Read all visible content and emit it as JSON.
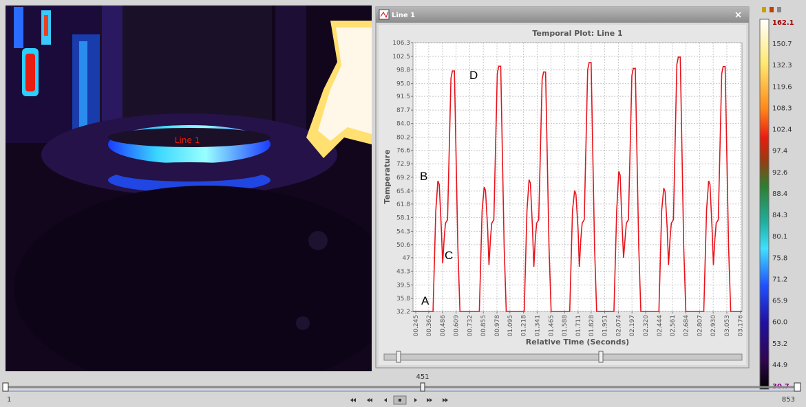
{
  "window": {
    "title": "Line 1"
  },
  "image": {
    "line_label": "Line 1"
  },
  "chart_data": {
    "type": "line",
    "title": "Temporal Plot: Line 1",
    "x_label": "Relative Time (Seconds)",
    "y_label": "Temperature",
    "color": "#e8141c",
    "grid": true,
    "xlim": [
      0.22,
      3.19
    ],
    "ylim": [
      32.2,
      106.3
    ],
    "xticks": [
      {
        "value": 0.245,
        "label": "00.245"
      },
      {
        "value": 0.362,
        "label": "00.362"
      },
      {
        "value": 0.486,
        "label": "00.486"
      },
      {
        "value": 0.609,
        "label": "00.609"
      },
      {
        "value": 0.732,
        "label": "00.732"
      },
      {
        "value": 0.855,
        "label": "00.855"
      },
      {
        "value": 0.978,
        "label": "00.978"
      },
      {
        "value": 1.095,
        "label": "01.095"
      },
      {
        "value": 1.218,
        "label": "01.218"
      },
      {
        "value": 1.341,
        "label": "01.341"
      },
      {
        "value": 1.465,
        "label": "01.465"
      },
      {
        "value": 1.588,
        "label": "01.588"
      },
      {
        "value": 1.711,
        "label": "01.711"
      },
      {
        "value": 1.828,
        "label": "01.828"
      },
      {
        "value": 1.951,
        "label": "01.951"
      },
      {
        "value": 2.074,
        "label": "02.074"
      },
      {
        "value": 2.197,
        "label": "02.197"
      },
      {
        "value": 2.32,
        "label": "02.320"
      },
      {
        "value": 2.444,
        "label": "02.444"
      },
      {
        "value": 2.561,
        "label": "02.561"
      },
      {
        "value": 2.684,
        "label": "02.684"
      },
      {
        "value": 2.807,
        "label": "02.807"
      },
      {
        "value": 2.93,
        "label": "02.930"
      },
      {
        "value": 3.053,
        "label": "03.053"
      },
      {
        "value": 3.176,
        "label": "03.176"
      }
    ],
    "yticks": [
      32.2,
      35.8,
      39.5,
      43.3,
      47.0,
      50.6,
      54.3,
      58.1,
      61.8,
      65.4,
      69.2,
      72.9,
      76.6,
      80.2,
      {
        "value": 84,
        "label": "84.0"
      },
      87.7,
      91.5,
      {
        "value": 95,
        "label": "95.0"
      },
      98.8,
      102.5,
      106.3
    ],
    "annotations": [
      "A",
      "B",
      "C",
      "D"
    ],
    "x": [
      0.22,
      0.401,
      0.426,
      0.445,
      0.457,
      0.476,
      0.488,
      0.501,
      0.513,
      0.532,
      0.563,
      0.576,
      0.594,
      0.625,
      0.644,
      0.819,
      0.844,
      0.863,
      0.875,
      0.894,
      0.906,
      0.919,
      0.931,
      0.95,
      0.981,
      0.994,
      1.012,
      1.043,
      1.062,
      1.224,
      1.249,
      1.268,
      1.28,
      1.299,
      1.311,
      1.324,
      1.336,
      1.355,
      1.386,
      1.399,
      1.417,
      1.448,
      1.467,
      1.635,
      1.66,
      1.679,
      1.691,
      1.71,
      1.722,
      1.735,
      1.747,
      1.766,
      1.797,
      1.81,
      1.828,
      1.859,
      1.878,
      2.034,
      2.059,
      2.078,
      2.09,
      2.109,
      2.121,
      2.134,
      2.146,
      2.165,
      2.196,
      2.209,
      2.227,
      2.258,
      2.277,
      2.44,
      2.465,
      2.484,
      2.496,
      2.515,
      2.527,
      2.54,
      2.552,
      2.571,
      2.602,
      2.615,
      2.633,
      2.664,
      2.683,
      2.845,
      2.87,
      2.889,
      2.901,
      2.92,
      2.932,
      2.945,
      2.957,
      2.976,
      3.007,
      3.02,
      3.038,
      3.069,
      3.088,
      3.19
    ],
    "values": [
      32.2,
      32.2,
      60.0,
      68.2,
      67.2,
      55.0,
      45.5,
      52.0,
      56.5,
      57.5,
      96.5,
      98.5,
      98.5,
      50.0,
      32.2,
      32.2,
      60.0,
      66.5,
      65.5,
      55.0,
      45.0,
      52.0,
      56.5,
      57.5,
      97.8,
      99.8,
      99.8,
      50.0,
      32.2,
      32.2,
      60.0,
      68.5,
      67.5,
      55.0,
      44.5,
      52.0,
      56.5,
      57.5,
      96.2,
      98.2,
      98.2,
      50.0,
      32.2,
      32.2,
      60.0,
      65.5,
      64.5,
      55.0,
      44.5,
      52.0,
      56.5,
      57.5,
      98.8,
      100.8,
      100.8,
      50.0,
      32.2,
      32.2,
      60.0,
      70.8,
      69.8,
      55.0,
      47.0,
      52.0,
      56.5,
      57.5,
      97.2,
      99.2,
      99.2,
      50.0,
      32.2,
      32.2,
      60.0,
      66.2,
      65.2,
      55.0,
      45.0,
      52.0,
      56.5,
      57.5,
      100.3,
      102.3,
      102.3,
      50.0,
      32.2,
      32.2,
      60.0,
      68.2,
      67.2,
      55.0,
      45.0,
      52.0,
      56.5,
      57.5,
      97.7,
      99.7,
      99.7,
      50.0,
      32.2,
      32.2
    ]
  },
  "colorbar": {
    "labels": [
      "162.1",
      "150.7",
      "132.3",
      "119.6",
      "108.3",
      "102.4",
      "97.4",
      "92.6",
      "88.4",
      "84.3",
      "80.1",
      "75.8",
      "71.2",
      "65.9",
      "60.0",
      "53.2",
      "44.9",
      "30.7"
    ]
  },
  "timeline": {
    "current": "451",
    "start": "1",
    "end": "853"
  }
}
